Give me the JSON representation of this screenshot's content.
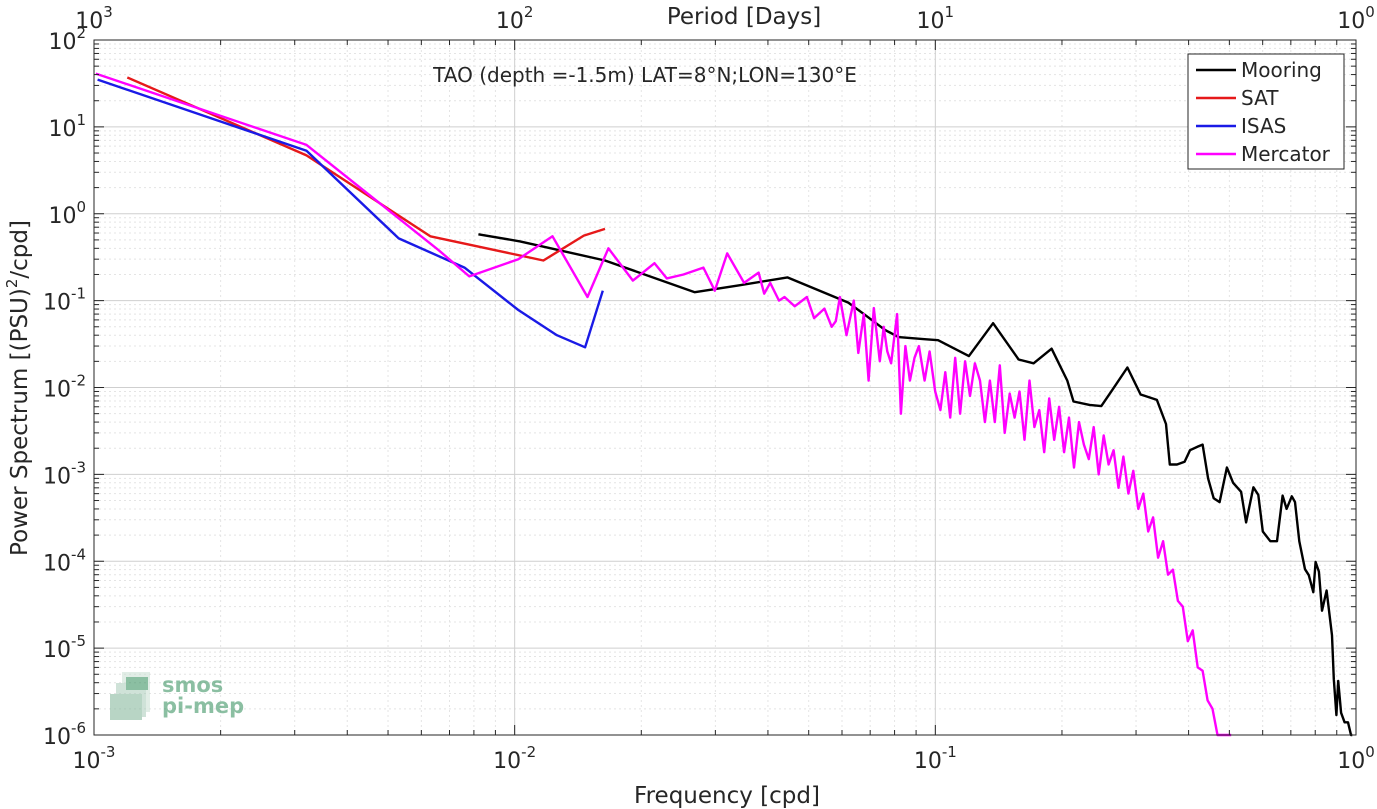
{
  "chart_data": {
    "type": "line",
    "title": "TAO (depth =-1.5m) LAT=8°N;LON=130°E",
    "xlabel": "Frequency [cpd]",
    "ylabel_main": "Power Spectrum [(PSU)",
    "ylabel_sup": "2",
    "ylabel_tail": "/cpd]",
    "top_xlabel": "Period [Days]",
    "x_scale": "log",
    "y_scale": "log",
    "xlim": [
      0.001,
      1
    ],
    "ylim": [
      1e-06,
      100
    ],
    "grid": true,
    "legend_position": "top-right",
    "x_ticks": [
      {
        "value": 0.001,
        "base": "10",
        "exp": "-3"
      },
      {
        "value": 0.01,
        "base": "10",
        "exp": "-2"
      },
      {
        "value": 0.1,
        "base": "10",
        "exp": "-1"
      },
      {
        "value": 1,
        "base": "10",
        "exp": "0"
      }
    ],
    "y_ticks": [
      {
        "value": 100,
        "base": "10",
        "exp": "2"
      },
      {
        "value": 10,
        "base": "10",
        "exp": "1"
      },
      {
        "value": 1,
        "base": "10",
        "exp": "0"
      },
      {
        "value": 0.1,
        "base": "10",
        "exp": "-1"
      },
      {
        "value": 0.01,
        "base": "10",
        "exp": "-2"
      },
      {
        "value": 0.001,
        "base": "10",
        "exp": "-3"
      },
      {
        "value": 0.0001,
        "base": "10",
        "exp": "-4"
      },
      {
        "value": 1e-05,
        "base": "10",
        "exp": "-5"
      },
      {
        "value": 1e-06,
        "base": "10",
        "exp": "-6"
      }
    ],
    "top_ticks": [
      {
        "freq": 0.001,
        "base": "10",
        "exp": "3"
      },
      {
        "freq": 0.01,
        "base": "10",
        "exp": "2"
      },
      {
        "freq": 0.1,
        "base": "10",
        "exp": "1"
      },
      {
        "freq": 1,
        "base": "10",
        "exp": "0"
      }
    ],
    "series": [
      {
        "name": "Mooring",
        "color": "#000000",
        "x": [
          0.0082,
          0.0103,
          0.0164,
          0.0268,
          0.0342,
          0.0445,
          0.0621,
          0.0682,
          0.0759,
          0.0817,
          0.0943,
          0.1015,
          0.1202,
          0.1372,
          0.1577,
          0.1712,
          0.189,
          0.2059,
          0.213,
          0.2327,
          0.248,
          0.2636,
          0.2861,
          0.3076,
          0.3362,
          0.3534,
          0.3608,
          0.3754,
          0.3914,
          0.4031,
          0.4219,
          0.4318,
          0.445,
          0.4589,
          0.474,
          0.4934,
          0.5104,
          0.5332,
          0.548,
          0.5703,
          0.5859,
          0.6004,
          0.6255,
          0.6488,
          0.6692,
          0.6838,
          0.7037,
          0.7161,
          0.7331,
          0.7566,
          0.7722,
          0.7914,
          0.8015,
          0.8164,
          0.8304,
          0.8515,
          0.8768,
          0.8855,
          0.8981,
          0.9074,
          0.9218,
          0.9394,
          0.9571,
          0.9729,
          0.98
        ],
        "y": [
          0.58,
          0.48,
          0.29,
          0.125,
          0.15,
          0.185,
          0.095,
          0.068,
          0.046,
          0.038,
          0.036,
          0.035,
          0.023,
          0.055,
          0.021,
          0.019,
          0.028,
          0.012,
          0.0069,
          0.0063,
          0.0061,
          0.0094,
          0.017,
          0.0083,
          0.0072,
          0.0038,
          0.0013,
          0.0013,
          0.0014,
          0.0019,
          0.0021,
          0.0022,
          0.0009,
          0.00053,
          0.00048,
          0.0012,
          0.0008,
          0.00063,
          0.00028,
          0.00071,
          0.00058,
          0.00022,
          0.00017,
          0.00017,
          0.00057,
          0.0004,
          0.00056,
          0.00048,
          0.00017,
          8.1e-05,
          6.9e-05,
          4.4e-05,
          9.8e-05,
          7.6e-05,
          2.7e-05,
          4.6e-05,
          1.4e-05,
          4.4e-06,
          1.7e-06,
          4.2e-06,
          1.8e-06,
          1.4e-06,
          1.4e-06,
          1e-06,
          1e-06
        ]
      },
      {
        "name": "SAT",
        "color": "#e6191a",
        "x": [
          0.0012,
          0.0032,
          0.0063,
          0.0117,
          0.0146,
          0.0164
        ],
        "y": [
          37,
          4.7,
          0.55,
          0.29,
          0.56,
          0.67
        ]
      },
      {
        "name": "ISAS",
        "color": "#1a1ae6",
        "x": [
          0.00102,
          0.0032,
          0.0053,
          0.0076,
          0.0102,
          0.0126,
          0.0147,
          0.0162
        ],
        "y": [
          35,
          5.3,
          0.52,
          0.24,
          0.078,
          0.04,
          0.029,
          0.13
        ]
      },
      {
        "name": "Mercator",
        "color": "#ff00ff",
        "x": [
          0.00101,
          0.0032,
          0.0066,
          0.0078,
          0.0102,
          0.0123,
          0.0149,
          0.0167,
          0.0191,
          0.0215,
          0.023,
          0.0252,
          0.0281,
          0.0299,
          0.032,
          0.0351,
          0.038,
          0.0392,
          0.0405,
          0.0425,
          0.0438,
          0.0463,
          0.0495,
          0.0515,
          0.0545,
          0.0567,
          0.058,
          0.0593,
          0.0615,
          0.064,
          0.0656,
          0.0676,
          0.0694,
          0.0714,
          0.0738,
          0.0754,
          0.0769,
          0.0785,
          0.0811,
          0.0828,
          0.0849,
          0.087,
          0.0892,
          0.0914,
          0.0943,
          0.0969,
          0.0999,
          0.1028,
          0.1056,
          0.1085,
          0.1115,
          0.1145,
          0.1177,
          0.1209,
          0.1242,
          0.1277,
          0.1312,
          0.1348,
          0.1385,
          0.1423,
          0.1462,
          0.1502,
          0.1543,
          0.1585,
          0.1629,
          0.1674,
          0.172,
          0.1767,
          0.1815,
          0.1865,
          0.1917,
          0.1969,
          0.2023,
          0.2079,
          0.2136,
          0.2195,
          0.2255,
          0.2317,
          0.238,
          0.2446,
          0.2513,
          0.2582,
          0.2653,
          0.2726,
          0.28,
          0.2877,
          0.2956,
          0.3037,
          0.3121,
          0.3206,
          0.3294,
          0.3385,
          0.3478,
          0.3573,
          0.3671,
          0.3772,
          0.3876,
          0.3982,
          0.4091,
          0.4204,
          0.4319,
          0.4438,
          0.456,
          0.4685,
          0.4814,
          0.49,
          0.5,
          0.505
        ],
        "y": [
          41,
          6.2,
          0.38,
          0.19,
          0.3,
          0.55,
          0.11,
          0.4,
          0.17,
          0.27,
          0.18,
          0.2,
          0.24,
          0.13,
          0.35,
          0.16,
          0.21,
          0.12,
          0.16,
          0.1,
          0.11,
          0.086,
          0.11,
          0.063,
          0.081,
          0.05,
          0.058,
          0.11,
          0.04,
          0.1,
          0.025,
          0.07,
          0.012,
          0.082,
          0.02,
          0.05,
          0.026,
          0.019,
          0.07,
          0.005,
          0.03,
          0.012,
          0.022,
          0.03,
          0.012,
          0.026,
          0.009,
          0.0055,
          0.015,
          0.0045,
          0.022,
          0.005,
          0.02,
          0.008,
          0.019,
          0.012,
          0.004,
          0.012,
          0.004,
          0.018,
          0.003,
          0.0085,
          0.0045,
          0.009,
          0.0025,
          0.012,
          0.0035,
          0.0055,
          0.0018,
          0.0075,
          0.0025,
          0.006,
          0.0018,
          0.0045,
          0.0012,
          0.004,
          0.0022,
          0.0015,
          0.0035,
          0.001,
          0.0028,
          0.0013,
          0.0019,
          0.0007,
          0.0016,
          0.0006,
          0.0011,
          0.0004,
          0.0006,
          0.00022,
          0.00032,
          0.00011,
          0.00017,
          7e-05,
          8e-05,
          3.5e-05,
          3e-05,
          1.2e-05,
          1.6e-05,
          6e-06,
          5.5e-06,
          2.5e-06,
          2e-06,
          1e-06,
          1e-06,
          1e-06,
          1e-06,
          1e-06
        ]
      }
    ]
  },
  "watermark": {
    "line1": "smos",
    "line2": "pi-mep"
  }
}
